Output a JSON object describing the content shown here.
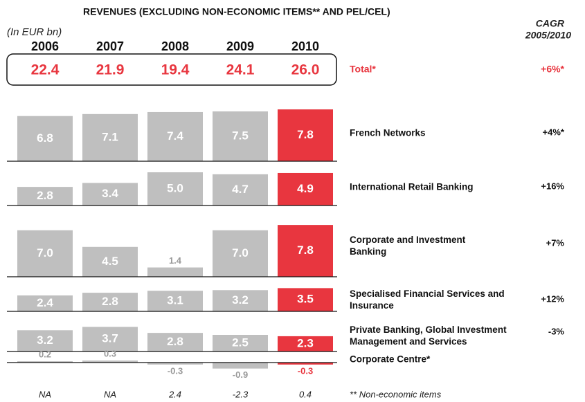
{
  "chart_data": {
    "type": "bar",
    "title": "REVENUES (EXCLUDING NON-ECONOMIC ITEMS** AND PEL/CEL)",
    "subtitle": "(In EUR bn)",
    "cagr_title": "CAGR",
    "cagr_period": "2005/2010",
    "categories": [
      "2006",
      "2007",
      "2008",
      "2009",
      "2010"
    ],
    "color": "#bfbfbf",
    "highlight_color": "#e8363f",
    "total": {
      "name": "Total*",
      "values": [
        22.4,
        21.9,
        19.4,
        24.1,
        26.0
      ],
      "value_labels": [
        "22.4",
        "21.9",
        "19.4",
        "24.1",
        "26.0"
      ],
      "cagr": "+6%*"
    },
    "series": [
      {
        "name": "French Networks",
        "values": [
          6.8,
          7.1,
          7.4,
          7.5,
          7.8
        ],
        "value_labels": [
          "6.8",
          "7.1",
          "7.4",
          "7.5",
          "7.8"
        ],
        "cagr": "+4%*"
      },
      {
        "name": "International Retail Banking",
        "values": [
          2.8,
          3.4,
          5.0,
          4.7,
          4.9
        ],
        "value_labels": [
          "2.8",
          "3.4",
          "5.0",
          "4.7",
          "4.9"
        ],
        "cagr": "+16%"
      },
      {
        "name": "Corporate and Investment Banking",
        "values": [
          7.0,
          4.5,
          1.4,
          7.0,
          7.8
        ],
        "value_labels": [
          "7.0",
          "4.5",
          "1.4",
          "7.0",
          "7.8"
        ],
        "cagr": "+7%"
      },
      {
        "name": "Specialised Financial Services and Insurance",
        "values": [
          2.4,
          2.8,
          3.1,
          3.2,
          3.5
        ],
        "value_labels": [
          "2.4",
          "2.8",
          "3.1",
          "3.2",
          "3.5"
        ],
        "cagr": "+12%"
      },
      {
        "name": "Private Banking, Global Investment Management and Services",
        "values": [
          3.2,
          3.7,
          2.8,
          2.5,
          2.3
        ],
        "value_labels": [
          "3.2",
          "3.7",
          "2.8",
          "2.5",
          "2.3"
        ],
        "cagr": "-3%"
      },
      {
        "name": "Corporate Centre*",
        "values": [
          0.2,
          0.3,
          -0.3,
          -0.9,
          -0.3
        ],
        "value_labels": [
          "0.2",
          "0.3",
          "-0.3",
          "-0.9",
          "-0.3"
        ]
      }
    ],
    "non_economic": {
      "name": "** Non-economic items",
      "values": [
        null,
        null,
        2.4,
        -2.3,
        0.4
      ],
      "value_labels": [
        "NA",
        "NA",
        "2.4",
        "-2.3",
        "0.4"
      ]
    }
  }
}
